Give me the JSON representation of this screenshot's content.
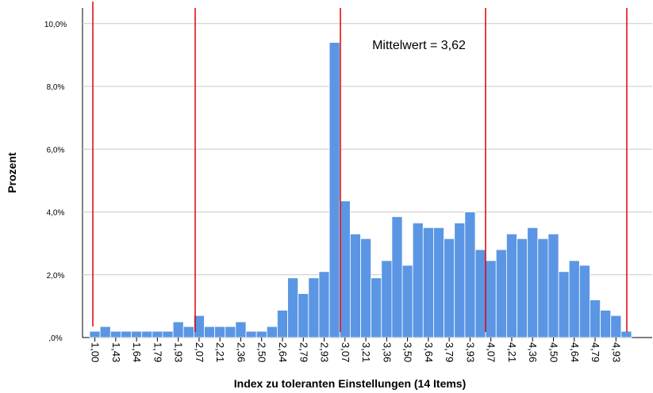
{
  "chart_data": {
    "type": "bar",
    "ylabel": "Prozent",
    "xlabel": "Index zu toleranten Einstellungen (14 Items)",
    "annotation": "Mittelwert = 3,62",
    "color": "#5b96e4",
    "grid": true,
    "categories": [
      "1,00",
      null,
      "1,43",
      null,
      "1,64",
      null,
      "1,79",
      null,
      "1,93",
      null,
      "2,07",
      null,
      "2,21",
      null,
      "2,36",
      null,
      "2,50",
      null,
      "2,64",
      null,
      "2,79",
      null,
      "2,93",
      null,
      "3,07",
      null,
      "3,21",
      null,
      "3,36",
      null,
      "3,50",
      null,
      "3,64",
      null,
      "3,79",
      null,
      "3,93",
      null,
      "4,07",
      null,
      "4,21",
      null,
      "4,36",
      null,
      "4,50",
      null,
      "4,64",
      null,
      "4,79",
      null,
      "4,93",
      null
    ],
    "values": [
      0.2,
      0.35,
      0.2,
      0.2,
      0.2,
      0.2,
      0.2,
      0.2,
      0.5,
      0.35,
      0.7,
      0.35,
      0.35,
      0.35,
      0.5,
      0.2,
      0.2,
      0.35,
      0.87,
      1.9,
      1.4,
      1.9,
      2.1,
      9.4,
      4.35,
      3.3,
      3.15,
      1.9,
      2.45,
      3.85,
      2.3,
      3.65,
      3.5,
      3.5,
      3.15,
      3.65,
      4.0,
      2.8,
      2.45,
      2.8,
      3.3,
      3.15,
      3.5,
      3.15,
      3.3,
      2.1,
      2.45,
      2.3,
      1.2,
      0.87,
      0.7,
      0.2
    ],
    "ylim": [
      0,
      10.5
    ],
    "yticks": [
      {
        "value": 0,
        "label": ",0%"
      },
      {
        "value": 2,
        "label": "2,0%"
      },
      {
        "value": 4,
        "label": "4,0%"
      },
      {
        "value": 6,
        "label": "6,0%"
      },
      {
        "value": 8,
        "label": "8,0%"
      },
      {
        "value": 10,
        "label": "10,0%"
      }
    ]
  }
}
